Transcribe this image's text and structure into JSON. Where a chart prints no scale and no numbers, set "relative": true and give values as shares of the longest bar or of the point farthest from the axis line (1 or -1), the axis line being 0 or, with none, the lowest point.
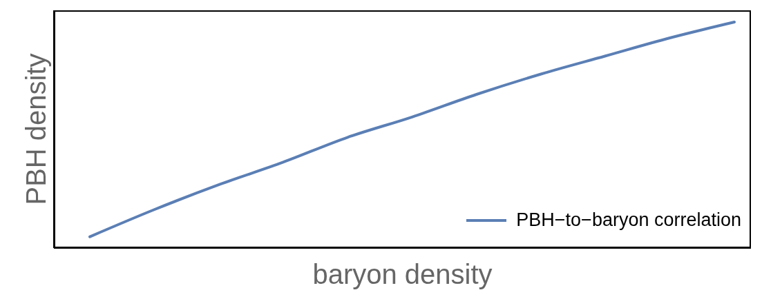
{
  "chart_data": {
    "type": "line",
    "relative": true,
    "xlabel": "baryon density",
    "ylabel": "PBH density",
    "categories": [
      null,
      null,
      null,
      null,
      null,
      null,
      null,
      null,
      null,
      null,
      null
    ],
    "series": [
      {
        "name": "PBH−to−baryon correlation",
        "color": "#5b7fb5",
        "values": [
          0.05,
          0.17,
          0.28,
          0.38,
          0.49,
          0.58,
          0.68,
          0.77,
          0.85,
          0.93,
          1
        ]
      }
    ],
    "legend": "bottom right",
    "grid": false,
    "marker": "none",
    "line_style": "solid"
  }
}
